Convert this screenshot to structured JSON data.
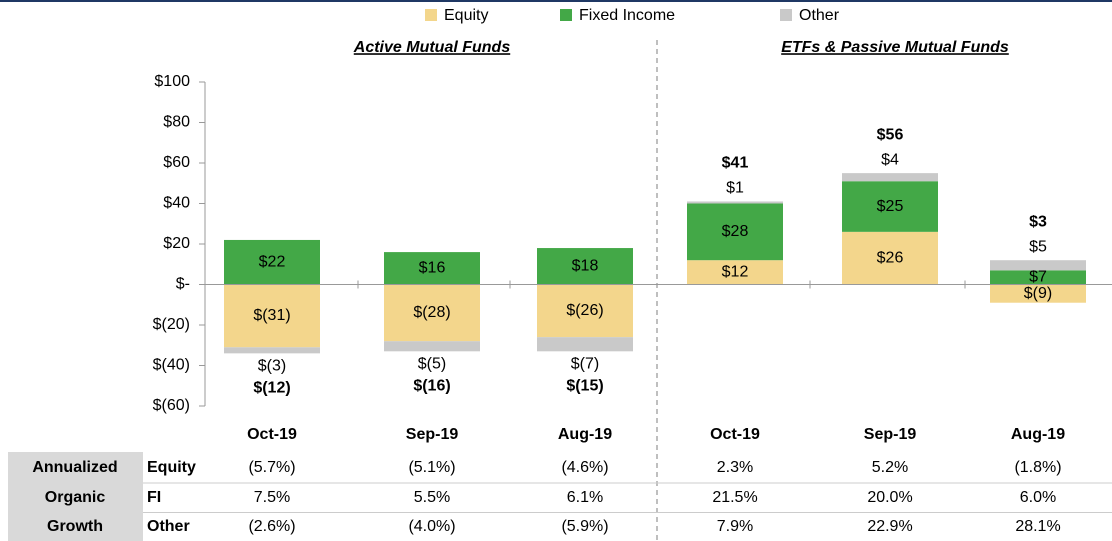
{
  "chart_data": {
    "type": "stacked_bar",
    "legend": "top",
    "panels": [
      "Active Mutual Funds",
      "ETFs & Passive Mutual Funds"
    ],
    "categories": [
      "Oct-19",
      "Sep-19",
      "Aug-19",
      "Oct-19",
      "Sep-19",
      "Aug-19"
    ],
    "series": [
      {
        "name": "Equity",
        "color": "#f3d68c",
        "values": [
          -31,
          -28,
          -26,
          12,
          26,
          -9
        ],
        "value_labels": [
          "$(31)",
          "$(28)",
          "$(26)",
          "$12",
          "$26",
          "$(9)"
        ]
      },
      {
        "name": "Fixed Income",
        "color": "#43a847",
        "values": [
          22,
          16,
          18,
          28,
          25,
          7
        ],
        "value_labels": [
          "$22",
          "$16",
          "$18",
          "$28",
          "$25",
          "$7"
        ]
      },
      {
        "name": "Other",
        "color": "#c9c9c9",
        "values": [
          -3,
          -5,
          -7,
          1,
          4,
          5
        ],
        "value_labels": [
          "$(3)",
          "$(5)",
          "$(7)",
          "$1",
          "$4",
          "$5"
        ]
      }
    ],
    "totals": {
      "values": [
        -12,
        -16,
        -15,
        41,
        56,
        3
      ],
      "value_labels": [
        "$(12)",
        "$(16)",
        "$(15)",
        "$41",
        "$56",
        "$3"
      ]
    },
    "ylim": [
      -60,
      100
    ],
    "yticks": [
      {
        "value": -60,
        "label": "$(60)"
      },
      {
        "value": -40,
        "label": "$(40)"
      },
      {
        "value": -20,
        "label": "$(20)"
      },
      {
        "value": 0,
        "label": "$-"
      },
      {
        "value": 20,
        "label": "$20"
      },
      {
        "value": 40,
        "label": "$40"
      },
      {
        "value": 60,
        "label": "$60"
      },
      {
        "value": 80,
        "label": "$80"
      },
      {
        "value": 100,
        "label": "$100"
      }
    ]
  },
  "table": {
    "header": [
      "Annualized",
      "Organic",
      "Growth"
    ],
    "rows": [
      {
        "label": "Equity",
        "cells": [
          "(5.7%)",
          "(5.1%)",
          "(4.6%)",
          "2.3%",
          "5.2%",
          "(1.8%)"
        ]
      },
      {
        "label": "FI",
        "cells": [
          "7.5%",
          "5.5%",
          "6.1%",
          "21.5%",
          "20.0%",
          "6.0%"
        ]
      },
      {
        "label": "Other",
        "cells": [
          "(2.6%)",
          "(4.0%)",
          "(5.9%)",
          "7.9%",
          "22.9%",
          "28.1%"
        ]
      }
    ]
  }
}
